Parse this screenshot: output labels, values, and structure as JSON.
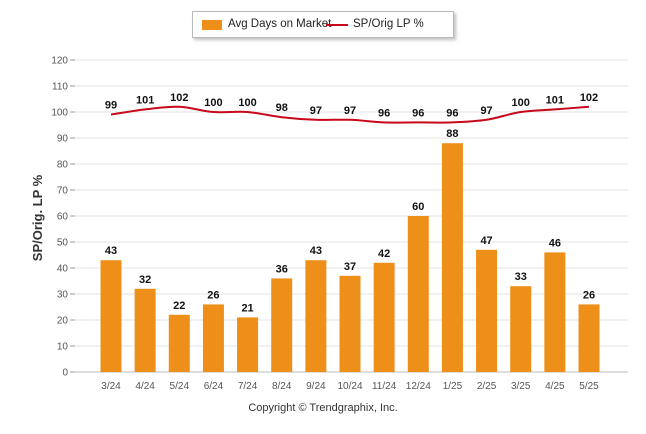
{
  "chart_data": {
    "type": "bar",
    "categories": [
      "3/24",
      "4/24",
      "5/24",
      "6/24",
      "7/24",
      "8/24",
      "9/24",
      "10/24",
      "11/24",
      "12/24",
      "1/25",
      "2/25",
      "3/25",
      "4/25",
      "5/25"
    ],
    "series": [
      {
        "name": "Avg Days on Market",
        "type": "bar",
        "color": "#ee8f1a",
        "values": [
          43,
          32,
          22,
          26,
          21,
          36,
          43,
          37,
          42,
          60,
          88,
          47,
          33,
          46,
          26
        ]
      },
      {
        "name": "SP/Orig LP %",
        "type": "line",
        "color": "#c8081b",
        "values": [
          99,
          101,
          102,
          100,
          100,
          98,
          97,
          97,
          96,
          96,
          96,
          97,
          100,
          101,
          102
        ]
      }
    ],
    "ylabel": "SP/Orig. LP %",
    "ylim": [
      0,
      120
    ],
    "yticks": [
      0,
      10,
      20,
      30,
      40,
      50,
      60,
      70,
      80,
      90,
      100,
      110,
      120
    ],
    "grid": true,
    "legend_position": "top-center"
  },
  "legend": {
    "bar_label": "Avg Days on Market",
    "line_label": "SP/Orig LP %"
  },
  "footer": {
    "copyright": "Copyright © Trendgraphix, Inc."
  }
}
